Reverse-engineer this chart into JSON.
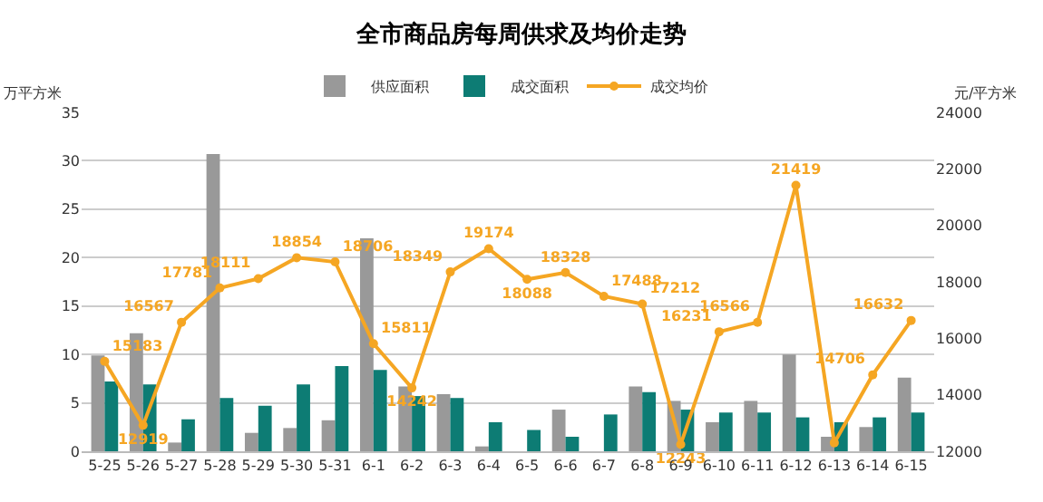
{
  "chart_data": {
    "type": "bar",
    "title": "全市商品房每周供求及均价走势",
    "ylabel": "万平方米",
    "y2label": "元/平方米",
    "categories": [
      "5-25",
      "5-26",
      "5-27",
      "5-28",
      "5-29",
      "5-30",
      "5-31",
      "6-1",
      "6-2",
      "6-3",
      "6-4",
      "6-5",
      "6-6",
      "6-7",
      "6-8",
      "6-9",
      "6-10",
      "6-11",
      "6-12",
      "6-13",
      "6-14",
      "6-15"
    ],
    "series": [
      {
        "name": "供应面积",
        "color": "#999999",
        "values": [
          9.9,
          12.2,
          0.9,
          30.7,
          1.9,
          2.4,
          3.2,
          22,
          6.7,
          5.9,
          0.5,
          null,
          4.3,
          null,
          6.7,
          5.2,
          3.0,
          5.2,
          10.0,
          1.5,
          2.5,
          7.6
        ]
      },
      {
        "name": "成交面积",
        "color": "#0d7c74",
        "values": [
          7.2,
          6.9,
          3.3,
          5.5,
          4.7,
          6.9,
          8.8,
          8.4,
          5.7,
          5.5,
          3.0,
          2.2,
          1.5,
          3.8,
          6.1,
          4.3,
          4.0,
          4.0,
          3.5,
          3.0,
          3.5,
          4.0
        ]
      },
      {
        "name": "成交均价",
        "type": "line",
        "axis": "y2",
        "color": "#f5a623",
        "marker": "circle",
        "values": [
          15183,
          12919,
          16567,
          17781,
          18111,
          18854,
          18706,
          15811,
          14242,
          18349,
          19174,
          18088,
          18328,
          17488,
          17212,
          12243,
          16231,
          16566,
          21419,
          12300,
          14706,
          16632
        ],
        "value_labels": [
          "15183",
          "12919",
          "16567",
          "17781",
          "18111",
          "18854",
          "18706",
          "15811",
          "14242",
          "18349",
          "19174",
          "18088",
          "18328",
          "17488",
          "17212",
          "12243",
          "16231",
          "16566",
          "21419",
          null,
          "14706",
          "16632"
        ]
      }
    ],
    "ylim": [
      0,
      35
    ],
    "yticks": [
      0,
      5,
      10,
      15,
      20,
      25,
      30,
      35
    ],
    "y2lim": [
      12000,
      24000
    ],
    "y2ticks": [
      12000,
      14000,
      16000,
      18000,
      20000,
      22000,
      24000
    ],
    "grid": "y",
    "legend": "top"
  }
}
